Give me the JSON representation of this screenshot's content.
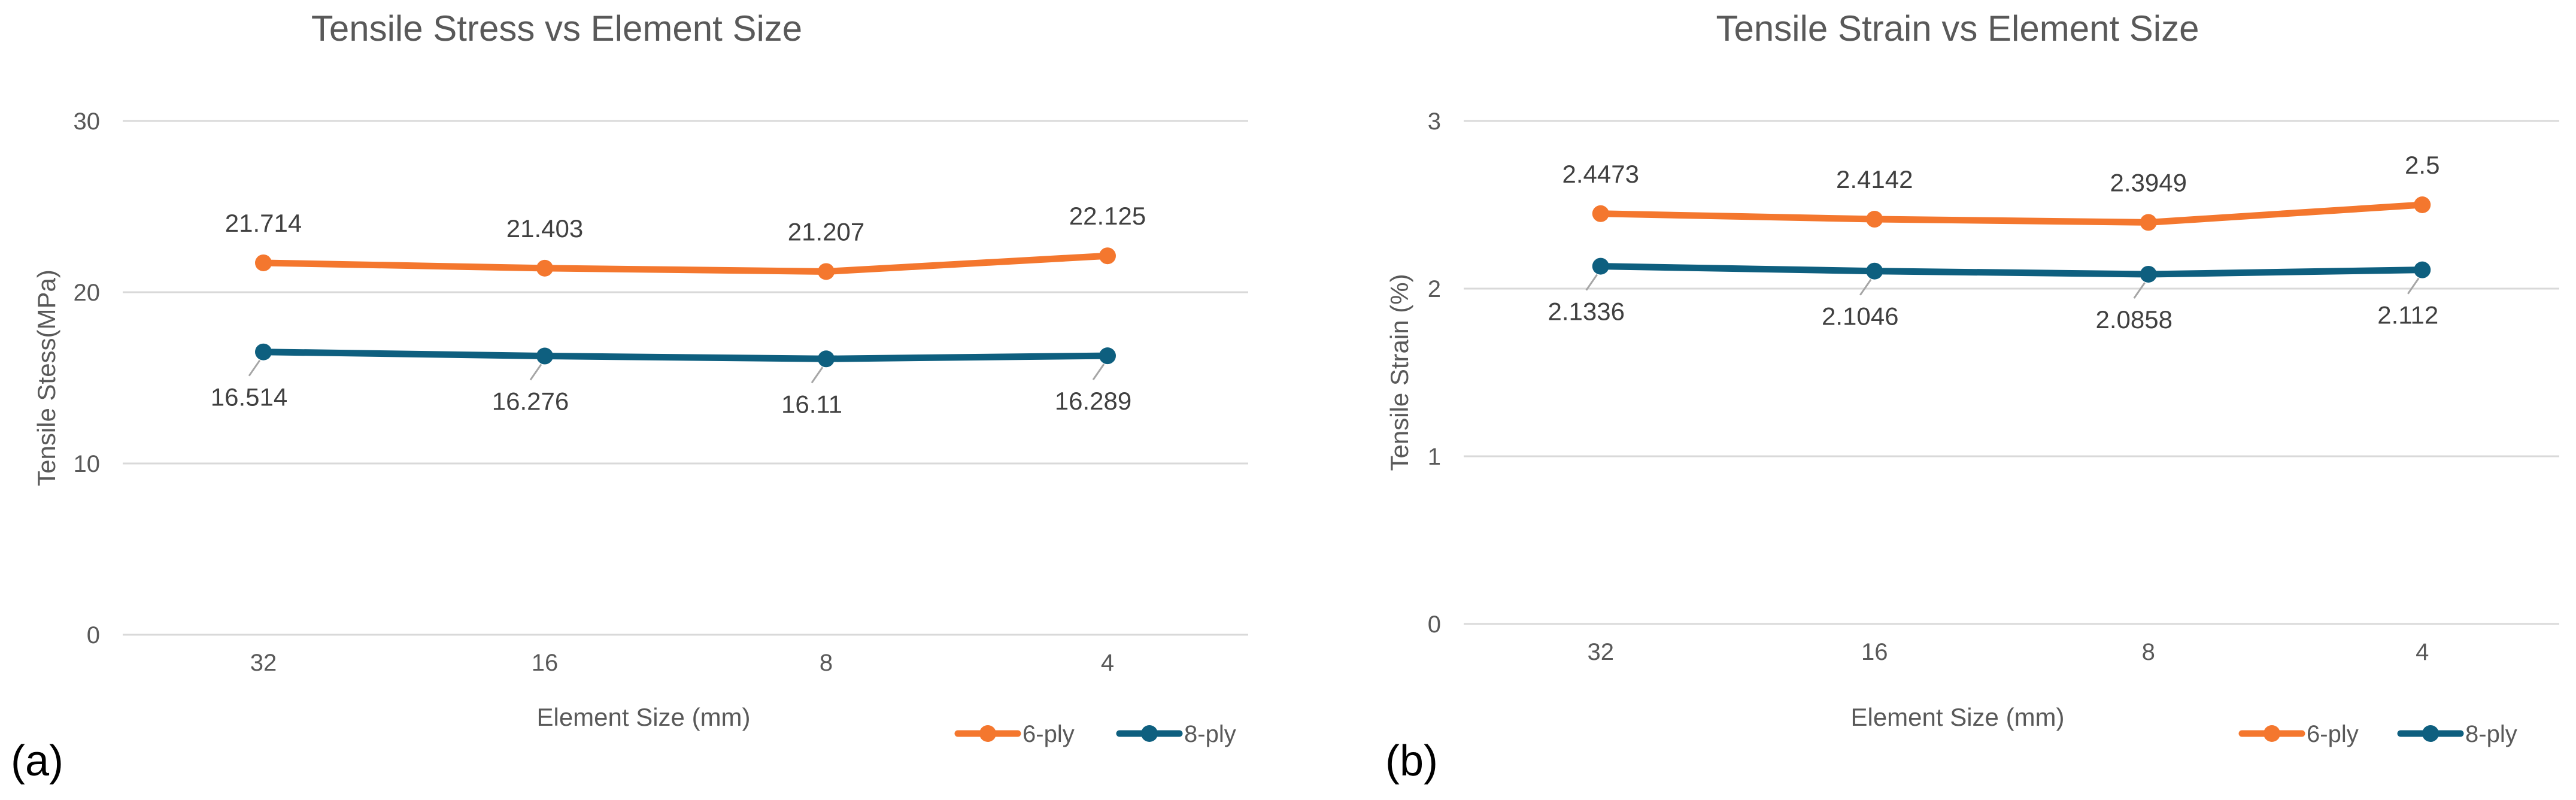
{
  "chart_data": [
    {
      "type": "line",
      "panel_label": "(a)",
      "title": "Tensile Stress vs Element Size",
      "xlabel": "Element Size (mm)",
      "ylabel": "Tensile Stess(MPa)",
      "categories": [
        "32",
        "16",
        "8",
        "4"
      ],
      "ylim": [
        0,
        30
      ],
      "yticks": [
        0,
        10,
        20,
        30
      ],
      "series": [
        {
          "name": "6-ply",
          "color": "#F4772E",
          "values": [
            21.714,
            21.403,
            21.207,
            22.125
          ],
          "labels": [
            "21.714",
            "21.403",
            "21.207",
            "22.125"
          ],
          "label_pos": "above"
        },
        {
          "name": "8-ply",
          "color": "#0E5F7F",
          "values": [
            16.514,
            16.276,
            16.11,
            16.289
          ],
          "labels": [
            "16.514",
            "16.276",
            "16.11",
            "16.289"
          ],
          "label_pos": "below"
        }
      ],
      "legend": "bottom-right"
    },
    {
      "type": "line",
      "panel_label": "(b)",
      "title": "Tensile Strain vs Element Size",
      "xlabel": "Element Size (mm)",
      "ylabel": "Tensile Strain (%)",
      "categories": [
        "32",
        "16",
        "8",
        "4"
      ],
      "ylim": [
        0,
        3
      ],
      "yticks": [
        0,
        1,
        2,
        3
      ],
      "series": [
        {
          "name": "6-ply",
          "color": "#F4772E",
          "values": [
            2.4473,
            2.4142,
            2.3949,
            2.5
          ],
          "labels": [
            "2.4473",
            "2.4142",
            "2.3949",
            "2.5"
          ],
          "label_pos": "above"
        },
        {
          "name": "8-ply",
          "color": "#0E5F7F",
          "values": [
            2.1336,
            2.1046,
            2.0858,
            2.112
          ],
          "labels": [
            "2.1336",
            "2.1046",
            "2.0858",
            "2.112"
          ],
          "label_pos": "below"
        }
      ],
      "legend": "bottom-right"
    }
  ]
}
